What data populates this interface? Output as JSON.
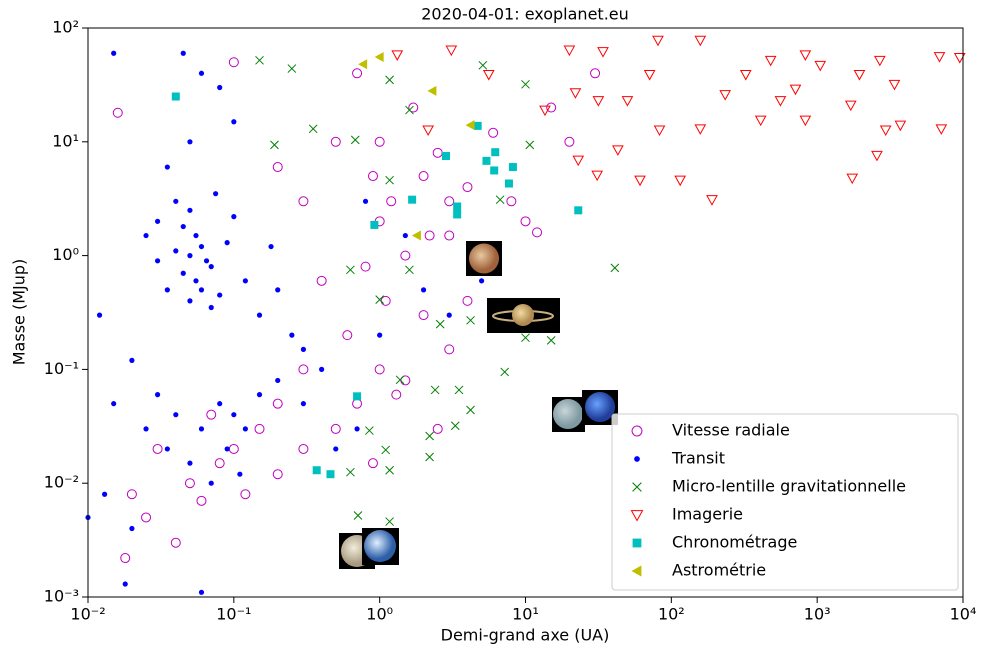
{
  "chart_data": {
    "type": "scatter",
    "title": "2020-04-01: exoplanet.eu",
    "x_label": "Demi-grand axe (UA)",
    "y_label": "Masse (MJup)",
    "x_scale": "log",
    "y_scale": "log",
    "xlim": [
      0.01,
      10000
    ],
    "ylim": [
      0.001,
      100
    ],
    "xticks": [
      {
        "value": 0.01,
        "label": "10⁻²"
      },
      {
        "value": 0.1,
        "label": "10⁻¹"
      },
      {
        "value": 1,
        "label": "10⁰"
      },
      {
        "value": 10,
        "label": "10¹"
      },
      {
        "value": 100,
        "label": "10²"
      },
      {
        "value": 1000,
        "label": "10³"
      },
      {
        "value": 10000,
        "label": "10⁴"
      }
    ],
    "yticks": [
      {
        "value": 0.001,
        "label": "10⁻³"
      },
      {
        "value": 0.01,
        "label": "10⁻²"
      },
      {
        "value": 0.1,
        "label": "10⁻¹"
      },
      {
        "value": 1,
        "label": "10⁰"
      },
      {
        "value": 10,
        "label": "10¹"
      },
      {
        "value": 100,
        "label": "10²"
      }
    ],
    "legend": "lower right",
    "series": [
      {
        "name": "Vitesse radiale",
        "color": "#bf00bf",
        "marker": "open-circle",
        "x": [
          0.016,
          0.1,
          0.2,
          0.3,
          0.5,
          0.7,
          1,
          1.2,
          1.5,
          2,
          2.5,
          3,
          1,
          0.8,
          1.1,
          2,
          3,
          4,
          5,
          6,
          8,
          10,
          12,
          15,
          30,
          20,
          0.9,
          1.7,
          2.2,
          0.6,
          0.4,
          0.3,
          0.2,
          0.15,
          0.1,
          0.07,
          0.05,
          0.03,
          0.025,
          0.04,
          0.06,
          0.08,
          0.12,
          0.2,
          0.3,
          0.5,
          0.7,
          1,
          1.5,
          3,
          0.02,
          0.018,
          4,
          6,
          1.3,
          0.9,
          2.5
        ],
        "y": [
          18,
          50,
          6,
          3,
          10,
          40,
          2,
          3,
          1,
          5,
          8,
          3,
          10,
          0.8,
          0.4,
          0.3,
          1.5,
          4,
          1,
          12,
          3,
          2,
          1.6,
          20,
          40,
          10,
          5,
          20,
          1.5,
          0.2,
          0.6,
          0.1,
          0.05,
          0.03,
          0.02,
          0.04,
          0.01,
          0.02,
          0.005,
          0.003,
          0.007,
          0.015,
          0.008,
          0.012,
          0.02,
          0.03,
          0.05,
          0.1,
          0.08,
          0.15,
          0.008,
          0.0022,
          0.4,
          0.8,
          0.06,
          0.015,
          0.03
        ]
      },
      {
        "name": "Transit",
        "color": "#0000ff",
        "marker": "dot",
        "x": [
          0.015,
          0.045,
          0.06,
          0.08,
          0.1,
          0.05,
          0.035,
          0.04,
          0.05,
          0.03,
          0.045,
          0.055,
          0.06,
          0.04,
          0.05,
          0.065,
          0.07,
          0.045,
          0.055,
          0.06,
          0.08,
          0.05,
          0.07,
          0.09,
          0.1,
          0.12,
          0.03,
          0.025,
          0.035,
          0.075,
          0.15,
          0.2,
          0.25,
          0.3,
          0.18,
          0.012,
          0.02,
          0.015,
          0.03,
          0.04,
          0.06,
          0.08,
          0.1,
          0.12,
          0.15,
          0.09,
          0.05,
          0.035,
          0.025,
          0.07,
          0.11,
          0.2,
          0.3,
          0.5,
          0.4,
          0.013,
          0.02,
          0.01,
          0.018,
          0.06,
          0.7,
          1,
          2,
          0.8,
          1.5,
          3,
          5
        ],
        "y": [
          60,
          60,
          40,
          30,
          15,
          10,
          6,
          3,
          2.5,
          2,
          1.8,
          1.5,
          1.2,
          1.1,
          1,
          0.9,
          0.8,
          0.7,
          0.6,
          0.5,
          0.45,
          0.4,
          0.35,
          1.3,
          2.2,
          0.6,
          0.9,
          1.5,
          0.5,
          3.5,
          0.3,
          0.5,
          0.2,
          0.15,
          1.2,
          0.3,
          0.12,
          0.05,
          0.06,
          0.04,
          0.03,
          0.05,
          0.04,
          0.03,
          0.06,
          0.02,
          0.015,
          0.02,
          0.03,
          0.01,
          0.012,
          0.08,
          0.05,
          0.02,
          0.1,
          0.008,
          0.004,
          0.005,
          0.0013,
          0.0011,
          0.03,
          0.2,
          0.5,
          3,
          1.5,
          0.3,
          0.6
        ]
      },
      {
        "name": "Micro-lentille gravitationnelle",
        "color": "#008000",
        "marker": "x",
        "x": [
          0.15,
          0.25,
          0.35,
          0.68,
          1.17,
          1.6,
          5.1,
          10,
          10.7,
          6.7,
          41,
          10,
          15,
          7.2,
          3.5,
          2.4,
          4.2,
          3.3,
          2.2,
          2.2,
          1.17,
          1.1,
          0.63,
          0.71,
          1.17,
          0.85,
          1.38,
          1,
          1.6,
          2.6,
          4.2,
          0.63,
          1.17,
          0.19
        ],
        "y": [
          52,
          44,
          13,
          10.4,
          35,
          19,
          47,
          32,
          9.4,
          3.1,
          0.78,
          0.19,
          0.18,
          0.095,
          0.066,
          0.066,
          0.044,
          0.032,
          0.026,
          0.017,
          0.013,
          0.0196,
          0.0125,
          0.0052,
          0.0046,
          0.029,
          0.081,
          0.41,
          0.75,
          0.25,
          0.27,
          0.75,
          4.6,
          9.4
        ]
      },
      {
        "name": "Imagerie",
        "color": "#ff0000",
        "marker": "triangle-down",
        "x": [
          1.32,
          2.15,
          3.1,
          5.6,
          13.6,
          20,
          22,
          31.6,
          23,
          31,
          34,
          43,
          50,
          61,
          71,
          81,
          83,
          115,
          158,
          190,
          158,
          234,
          324,
          410,
          480,
          560,
          710,
          830,
          830,
          1050,
          1700,
          1950,
          2570,
          2690,
          2950,
          3390,
          3720,
          6900,
          7100,
          9500,
          1740
        ],
        "y": [
          58,
          12.7,
          64,
          39,
          19,
          64,
          27,
          23,
          6.9,
          5.1,
          62,
          8.5,
          23,
          4.6,
          39,
          78,
          12.7,
          4.6,
          13,
          3.1,
          78,
          26,
          39,
          15.5,
          52,
          23,
          29,
          58,
          15.5,
          47,
          21,
          39,
          7.6,
          52,
          12.7,
          32,
          14,
          56,
          13,
          55,
          4.8
        ]
      },
      {
        "name": "Chronométrage",
        "color": "#00bfbf",
        "marker": "square",
        "x": [
          0.04,
          4.7,
          2.85,
          5.4,
          6.2,
          8.2,
          7.7,
          6.1,
          1.67,
          3.4,
          3.4,
          0.92,
          23,
          0.7,
          0.37,
          0.46
        ],
        "y": [
          25,
          13.8,
          7.5,
          6.8,
          8.1,
          6,
          4.3,
          5.6,
          3.1,
          2.7,
          2.3,
          1.86,
          2.5,
          0.058,
          0.013,
          0.012
        ]
      },
      {
        "name": "Astrométrie",
        "color": "#bfbf00",
        "marker": "triangle-left",
        "x": [
          0.77,
          1,
          2.3,
          4.2,
          1.8
        ],
        "y": [
          48,
          55.6,
          28,
          14,
          1.5
        ]
      }
    ]
  }
}
